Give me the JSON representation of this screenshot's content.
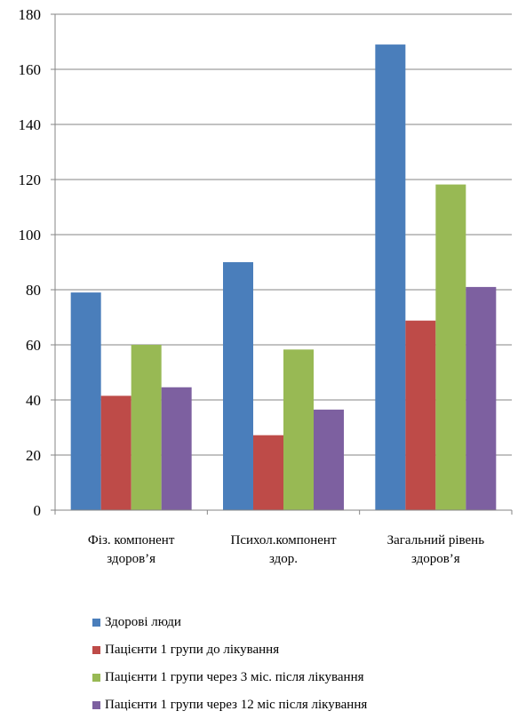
{
  "chart_data": {
    "type": "bar",
    "categories": [
      [
        "Фіз. компонент",
        "здоров’я"
      ],
      [
        "Психол.компонент",
        "здор."
      ],
      [
        "Загальний рівень",
        "здоров’я"
      ]
    ],
    "series": [
      {
        "name": "Здорові люди",
        "color": "#4a7ebb",
        "values": [
          79,
          90,
          169
        ]
      },
      {
        "name": "Пацієнти 1 групи до лікування",
        "color": "#be4b48",
        "values": [
          41.5,
          27.2,
          68.8
        ]
      },
      {
        "name": "Пацієнти 1 групи через 3 міс. після лікування",
        "color": "#98b954",
        "values": [
          60,
          58.3,
          118.2
        ]
      },
      {
        "name": "Пацієнти 1 групи через 12 міс після лікування",
        "color": "#7d60a0",
        "values": [
          44.6,
          36.5,
          81
        ]
      }
    ],
    "ylim": [
      0,
      180
    ],
    "yticks": [
      "0",
      "20",
      "40",
      "60",
      "80",
      "100",
      "120",
      "140",
      "160",
      "180"
    ],
    "grid": true,
    "legend_position": "bottom-left"
  }
}
